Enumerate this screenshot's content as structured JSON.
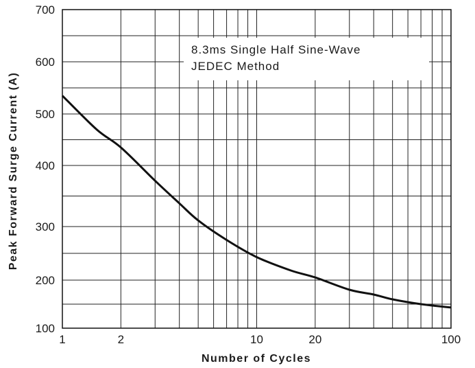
{
  "chart_data": {
    "type": "line",
    "title": "",
    "xlabel": "Number of Cycles",
    "ylabel": "Peak Forward Surge Current (A)",
    "xscale": "log",
    "xlim": [
      1,
      100
    ],
    "ylim": [
      100,
      700
    ],
    "grid": true,
    "xticks": [
      1,
      2,
      10,
      20,
      100
    ],
    "xtick_labels": [
      "1",
      "2",
      "10",
      "20",
      "100"
    ],
    "yticks": [
      100,
      200,
      300,
      400,
      500,
      600,
      700
    ],
    "ytick_labels": [
      "100",
      "200",
      "300",
      "400",
      "500",
      "600",
      "700"
    ],
    "annotation": [
      "8.3ms Single Half Sine-Wave",
      "JEDEC Method"
    ],
    "series": [
      {
        "x": [
          1,
          1.5,
          2,
          3,
          4,
          5,
          7,
          10,
          15,
          20,
          30,
          40,
          50,
          70,
          100
        ],
        "y": [
          535,
          470,
          435,
          375,
          338,
          310,
          275,
          243,
          218,
          205,
          180,
          170,
          160,
          150,
          143
        ]
      }
    ]
  }
}
